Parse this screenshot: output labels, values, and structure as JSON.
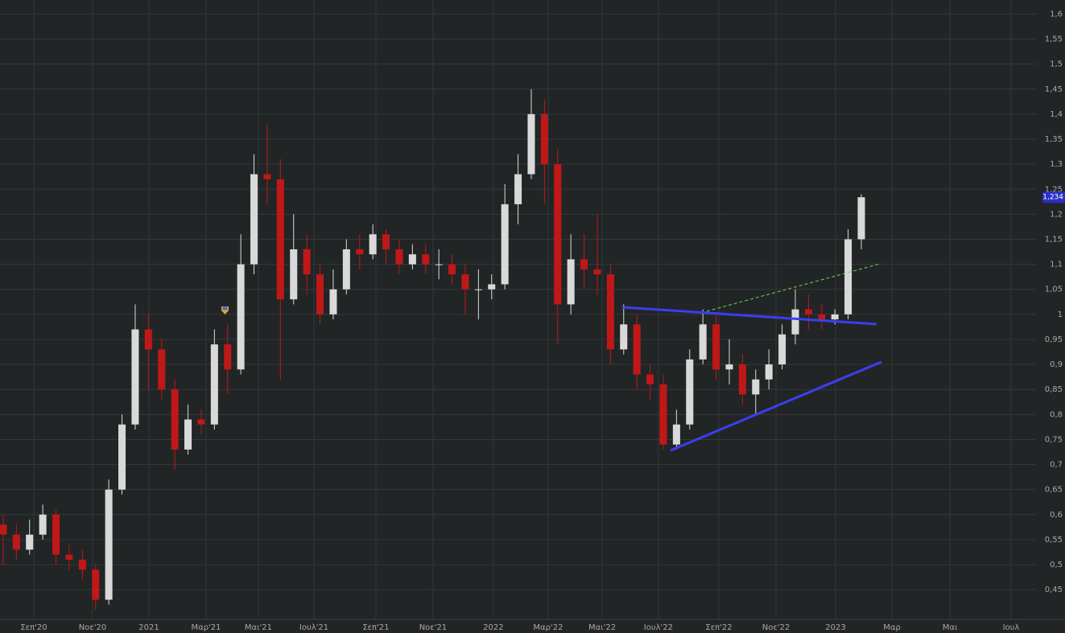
{
  "chart_data": {
    "type": "candlestick",
    "up_color": "#d9d9d9",
    "down_color": "#c01818",
    "open": [
      0.58,
      0.56,
      0.53,
      0.56,
      0.6,
      0.52,
      0.51,
      0.49,
      0.43,
      0.65,
      0.78,
      0.97,
      0.93,
      0.85,
      0.73,
      0.79,
      0.78,
      0.94,
      0.89,
      1.1,
      1.28,
      1.27,
      1.03,
      1.13,
      1.08,
      1.0,
      1.05,
      1.13,
      1.12,
      1.16,
      1.13,
      1.1,
      1.12,
      1.1,
      1.1,
      1.08,
      1.05,
      1.05,
      1.06,
      1.22,
      1.28,
      1.4,
      1.3,
      1.02,
      1.11,
      1.09,
      1.08,
      0.93,
      0.98,
      0.88,
      0.86,
      0.74,
      0.78,
      0.91,
      0.98,
      0.89,
      0.9,
      0.84,
      0.87,
      0.9,
      0.96,
      1.01,
      1.0,
      0.99,
      1.0,
      1.15
    ],
    "high": [
      0.6,
      0.58,
      0.59,
      0.62,
      0.61,
      0.54,
      0.53,
      0.5,
      0.67,
      0.8,
      1.02,
      1.0,
      0.95,
      0.87,
      0.82,
      0.81,
      0.97,
      0.98,
      1.16,
      1.32,
      1.38,
      1.31,
      1.2,
      1.16,
      1.1,
      1.09,
      1.15,
      1.16,
      1.18,
      1.17,
      1.15,
      1.14,
      1.14,
      1.13,
      1.12,
      1.1,
      1.09,
      1.08,
      1.26,
      1.32,
      1.45,
      1.43,
      1.33,
      1.16,
      1.16,
      1.2,
      1.1,
      1.02,
      1.0,
      0.9,
      0.88,
      0.81,
      0.93,
      1.01,
      1.0,
      0.95,
      0.92,
      0.89,
      0.93,
      0.98,
      1.05,
      1.04,
      1.02,
      1.01,
      1.17,
      1.24
    ],
    "low": [
      0.5,
      0.51,
      0.52,
      0.55,
      0.5,
      0.49,
      0.47,
      0.41,
      0.42,
      0.64,
      0.77,
      0.85,
      0.83,
      0.69,
      0.72,
      0.76,
      0.77,
      0.84,
      0.88,
      1.08,
      1.22,
      0.87,
      1.02,
      1.04,
      0.98,
      0.99,
      1.04,
      1.09,
      1.11,
      1.1,
      1.08,
      1.09,
      1.08,
      1.07,
      1.06,
      1.0,
      0.99,
      1.03,
      1.05,
      1.18,
      1.27,
      1.22,
      0.94,
      1.0,
      1.05,
      1.04,
      0.9,
      0.92,
      0.85,
      0.83,
      0.73,
      0.73,
      0.77,
      0.9,
      0.87,
      0.86,
      0.82,
      0.8,
      0.85,
      0.89,
      0.94,
      0.97,
      0.97,
      0.98,
      0.99,
      1.13
    ],
    "close": [
      0.56,
      0.53,
      0.56,
      0.6,
      0.52,
      0.51,
      0.49,
      0.43,
      0.65,
      0.78,
      0.97,
      0.93,
      0.85,
      0.73,
      0.79,
      0.78,
      0.94,
      0.89,
      1.1,
      1.28,
      1.27,
      1.03,
      1.13,
      1.08,
      1.0,
      1.05,
      1.13,
      1.12,
      1.16,
      1.13,
      1.1,
      1.12,
      1.1,
      1.1,
      1.08,
      1.05,
      1.05,
      1.06,
      1.22,
      1.28,
      1.4,
      1.3,
      1.02,
      1.11,
      1.09,
      1.08,
      0.93,
      0.98,
      0.88,
      0.86,
      0.74,
      0.78,
      0.91,
      0.98,
      0.89,
      0.9,
      0.84,
      0.87,
      0.9,
      0.96,
      1.01,
      1.0,
      0.99,
      1.0,
      1.15,
      1.234
    ],
    "last_price": {
      "value": 1.234,
      "label": "1,234"
    },
    "ylim": [
      0.394,
      1.628
    ],
    "yticks": [
      {
        "value": 0.45,
        "label": "0,45"
      },
      {
        "value": 0.5,
        "label": "0,5"
      },
      {
        "value": 0.55,
        "label": "0,55"
      },
      {
        "value": 0.6,
        "label": "0,6"
      },
      {
        "value": 0.65,
        "label": "0,65"
      },
      {
        "value": 0.7,
        "label": "0,7"
      },
      {
        "value": 0.75,
        "label": "0,75"
      },
      {
        "value": 0.8,
        "label": "0,8"
      },
      {
        "value": 0.85,
        "label": "0,85"
      },
      {
        "value": 0.9,
        "label": "0,9"
      },
      {
        "value": 0.95,
        "label": "0,95"
      },
      1,
      {
        "value": 1.05,
        "label": "1,05"
      },
      {
        "value": 1.1,
        "label": "1,1"
      },
      {
        "value": 1.15,
        "label": "1,15"
      },
      {
        "value": 1.2,
        "label": "1,2"
      },
      {
        "value": 1.25,
        "label": "1,25"
      },
      {
        "value": 1.3,
        "label": "1,3"
      },
      {
        "value": 1.35,
        "label": "1,35"
      },
      {
        "value": 1.4,
        "label": "1,4"
      },
      {
        "value": 1.45,
        "label": "1,45"
      },
      {
        "value": 1.5,
        "label": "1,5"
      },
      {
        "value": 1.55,
        "label": "1,55"
      },
      {
        "value": 1.6,
        "label": "1,6"
      }
    ],
    "xlim": [
      -0.24,
      78.11
    ],
    "xticks": [
      {
        "value": 2.32,
        "label": "Σεπ'20"
      },
      {
        "value": 6.77,
        "label": "Νοε'20"
      },
      {
        "value": 11.04,
        "label": "2021"
      },
      {
        "value": 15.37,
        "label": "Μαρ'21"
      },
      {
        "value": 19.33,
        "label": "Μαι'21"
      },
      {
        "value": 23.54,
        "label": "Ιουλ'21"
      },
      {
        "value": 28.23,
        "label": "Σεπ'21"
      },
      {
        "value": 32.56,
        "label": "Νοε'21"
      },
      {
        "value": 37.13,
        "label": "2022"
      },
      {
        "value": 41.28,
        "label": "Μαρ'22"
      },
      {
        "value": 45.37,
        "label": "Μαι'22"
      },
      {
        "value": 49.63,
        "label": "Ιουλ'22"
      },
      {
        "value": 54.21,
        "label": "Σεπ'22"
      },
      {
        "value": 58.54,
        "label": "Νοε'22"
      },
      {
        "value": 63.05,
        "label": "2023"
      },
      {
        "value": 67.32,
        "label": "Μαρ"
      },
      {
        "value": 71.71,
        "label": "Μαι"
      },
      {
        "value": 76.34,
        "label": "Ιουλ"
      }
    ],
    "grid": true
  }
}
